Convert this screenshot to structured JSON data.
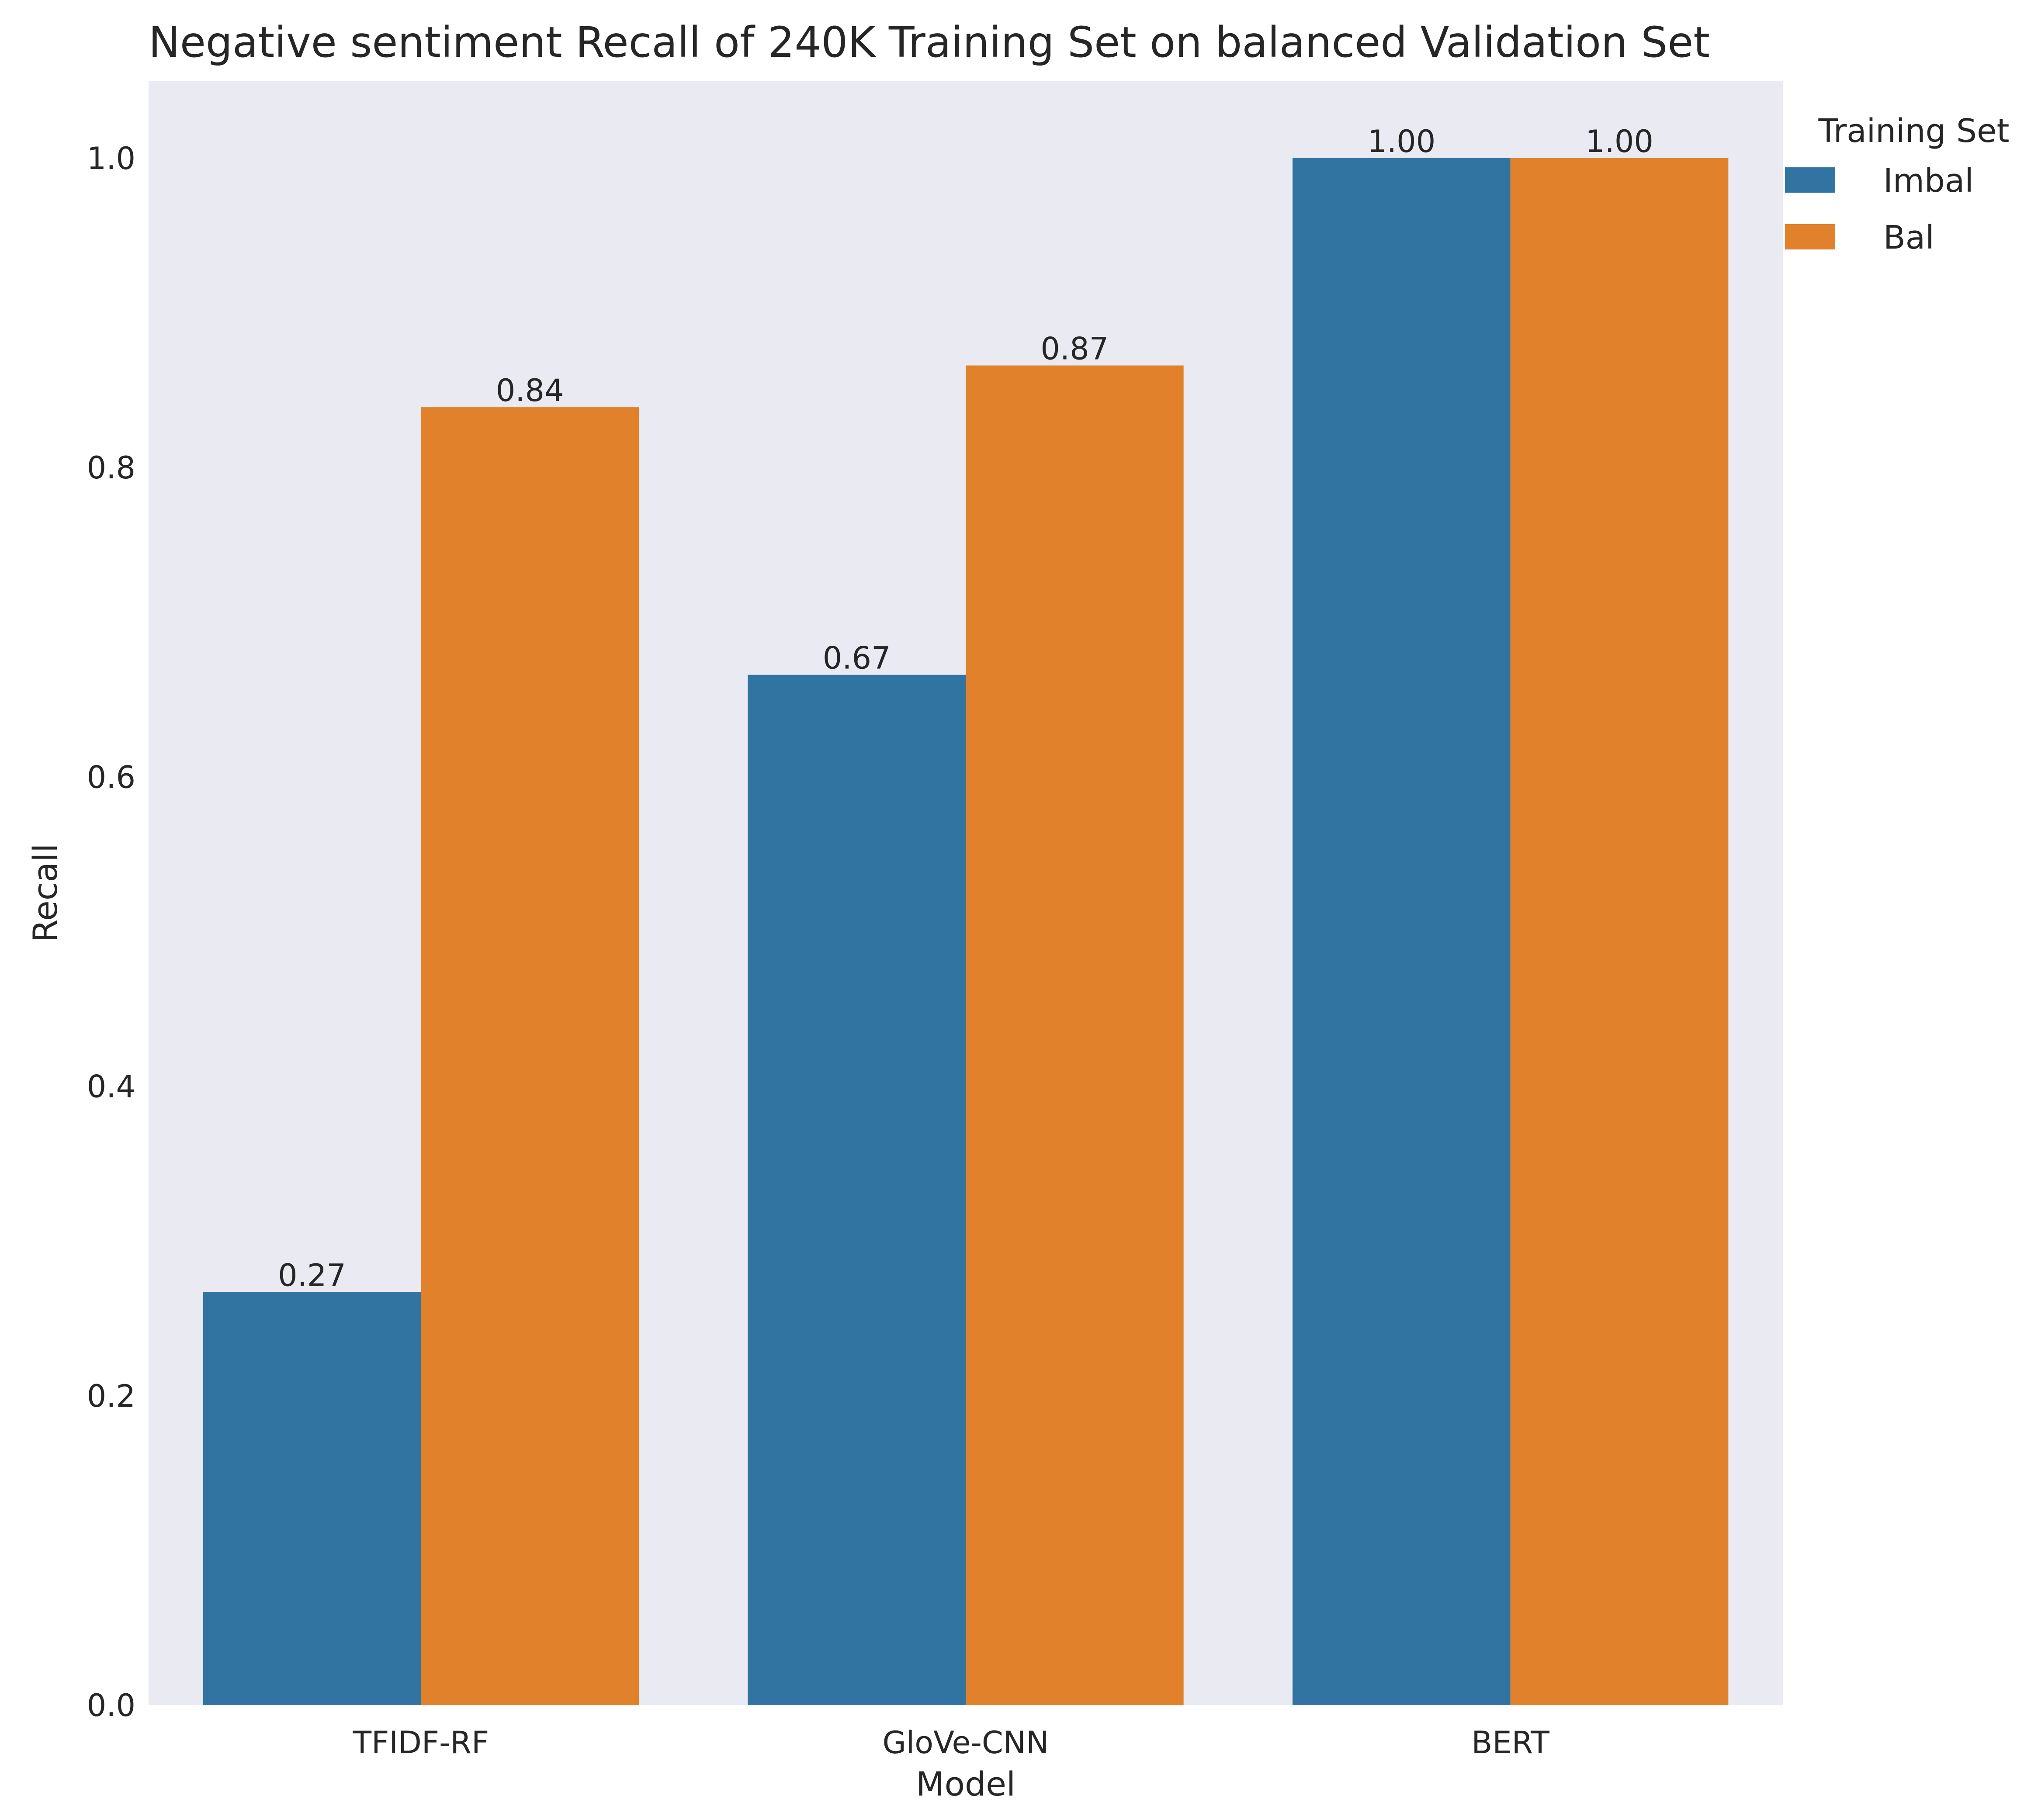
{
  "chart_data": {
    "type": "bar",
    "title": "Negative sentiment Recall of 240K Training Set on balanced Validation Set",
    "xlabel": "Model",
    "ylabel": "Recall",
    "categories": [
      "TFIDF-RF",
      "GloVe-CNN",
      "BERT"
    ],
    "series": [
      {
        "name": "Imbal",
        "values": [
          0.267,
          0.666,
          1.0
        ],
        "labels": [
          "0.27",
          "0.67",
          "1.00"
        ],
        "color": "#3274a1"
      },
      {
        "name": "Bal",
        "values": [
          0.839,
          0.866,
          1.0
        ],
        "labels": [
          "0.84",
          "0.87",
          "1.00"
        ],
        "color": "#e1812c"
      }
    ],
    "ylim": [
      0,
      1.05
    ],
    "yticks": [
      0.0,
      0.2,
      0.4,
      0.6,
      0.8,
      1.0
    ],
    "ytick_labels": [
      "0.0",
      "0.2",
      "0.4",
      "0.6",
      "0.8",
      "1.0"
    ],
    "legend": {
      "title": "Training Set",
      "placement": "upper-right-outside"
    },
    "grid": false,
    "background": "#eaeaf2"
  }
}
